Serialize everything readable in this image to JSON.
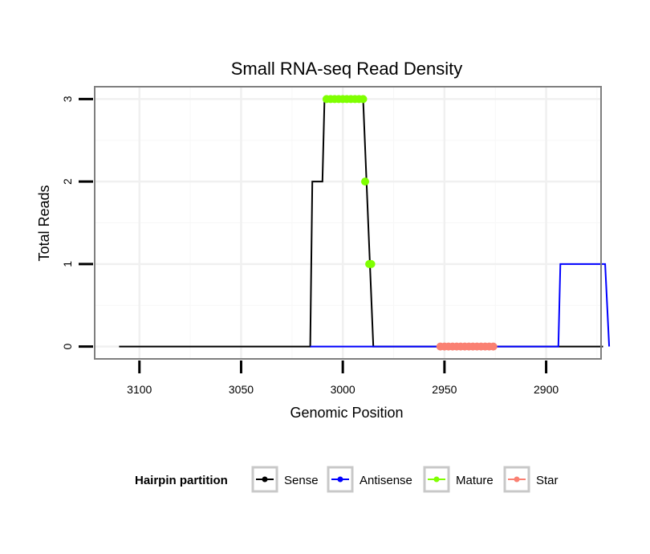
{
  "chart_data": {
    "type": "line",
    "title": "Small RNA-seq Read Density",
    "xlabel": "Genomic Position",
    "ylabel": "Total Reads",
    "x_reversed": true,
    "xlim": [
      3122,
      2873
    ],
    "ylim": [
      -0.15,
      3.15
    ],
    "xticks": [
      3100,
      3050,
      3000,
      2950,
      2900
    ],
    "yticks": [
      0,
      1,
      2,
      3
    ],
    "grid": true,
    "legend_position": "bottom",
    "legend": {
      "title": "Hairpin partition",
      "entries": [
        {
          "label": "Sense",
          "color": "#000000"
        },
        {
          "label": "Antisense",
          "color": "#0000ff"
        },
        {
          "label": "Mature",
          "color": "#7fff00"
        },
        {
          "label": "Star",
          "color": "#fa8072"
        }
      ]
    },
    "series": [
      {
        "name": "Sense",
        "kind": "line",
        "color": "#000000",
        "points": [
          [
            3110,
            0
          ],
          [
            3016,
            0
          ],
          [
            3015,
            2
          ],
          [
            3010,
            2
          ],
          [
            3009,
            3
          ],
          [
            2990,
            3
          ],
          [
            2985,
            0
          ],
          [
            2872,
            0
          ]
        ]
      },
      {
        "name": "Antisense",
        "kind": "line",
        "color": "#0000ff",
        "points": [
          [
            3016,
            0
          ],
          [
            2984,
            0
          ],
          [
            2894,
            0
          ],
          [
            2893,
            1
          ],
          [
            2871,
            1
          ],
          [
            2869,
            0
          ]
        ]
      },
      {
        "name": "Mature",
        "kind": "points",
        "color": "#7fff00",
        "points": [
          [
            3008,
            3
          ],
          [
            3006,
            3
          ],
          [
            3004,
            3
          ],
          [
            3002,
            3
          ],
          [
            3000,
            3
          ],
          [
            2998,
            3
          ],
          [
            2996,
            3
          ],
          [
            2994,
            3
          ],
          [
            2992,
            3
          ],
          [
            2990,
            3
          ],
          [
            2989,
            2
          ],
          [
            2987,
            1
          ],
          [
            2986,
            1
          ]
        ]
      },
      {
        "name": "Star",
        "kind": "points",
        "color": "#fa8072",
        "points": [
          [
            2952,
            0
          ],
          [
            2950,
            0
          ],
          [
            2948,
            0
          ],
          [
            2946,
            0
          ],
          [
            2944,
            0
          ],
          [
            2942,
            0
          ],
          [
            2940,
            0
          ],
          [
            2938,
            0
          ],
          [
            2936,
            0
          ],
          [
            2934,
            0
          ],
          [
            2932,
            0
          ],
          [
            2930,
            0
          ],
          [
            2928,
            0
          ],
          [
            2926,
            0
          ]
        ]
      }
    ]
  }
}
